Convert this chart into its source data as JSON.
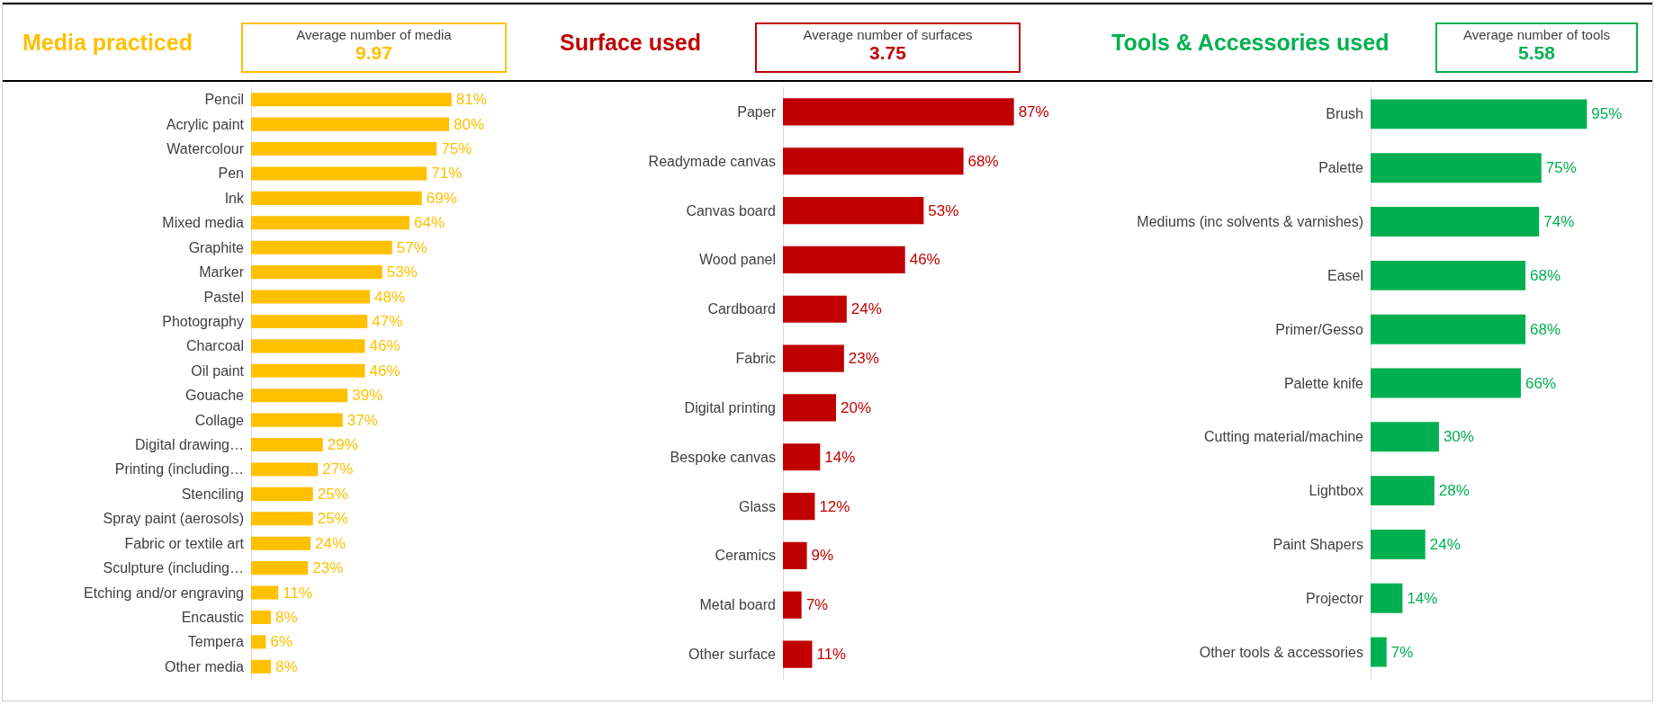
{
  "chart_data": [
    {
      "type": "bar",
      "orientation": "horizontal",
      "title": "Media practiced",
      "annotations": [
        "Average number of media",
        "9.97"
      ],
      "color": "#ffc000",
      "categories": [
        "Pencil",
        "Acrylic paint",
        "Watercolour",
        "Pen",
        "Ink",
        "Mixed media",
        "Graphite",
        "Marker",
        "Pastel",
        "Photography",
        "Charcoal",
        "Oil paint",
        "Gouache",
        "Collage",
        "Digital drawing…",
        "Printing (including…",
        "Stenciling",
        "Spray paint (aerosols)",
        "Fabric or textile art",
        "Sculpture (including…",
        "Etching and/or engraving",
        "Encaustic",
        "Tempera",
        "Other media"
      ],
      "values": [
        81,
        80,
        75,
        71,
        69,
        64,
        57,
        53,
        48,
        47,
        46,
        46,
        39,
        37,
        29,
        27,
        25,
        25,
        24,
        23,
        11,
        8,
        6,
        8
      ],
      "value_labels": [
        "81%",
        "80%",
        "75%",
        "71%",
        "69%",
        "64%",
        "57%",
        "53%",
        "48%",
        "47%",
        "46%",
        "46%",
        "39%",
        "37%",
        "29%",
        "27%",
        "25%",
        "25%",
        "24%",
        "23%",
        "11%",
        "8%",
        "6%",
        "8%"
      ]
    },
    {
      "type": "bar",
      "orientation": "horizontal",
      "title": "Surface used",
      "annotations": [
        "Average number of surfaces",
        "3.75"
      ],
      "color": "#c00000",
      "categories": [
        "Paper",
        "Readymade canvas",
        "Canvas board",
        "Wood panel",
        "Cardboard",
        "Fabric",
        "Digital printing",
        "Bespoke canvas",
        "Glass",
        "Ceramics",
        "Metal board",
        "Other surface"
      ],
      "values": [
        87,
        68,
        53,
        46,
        24,
        23,
        20,
        14,
        12,
        9,
        7,
        11
      ],
      "value_labels": [
        "87%",
        "68%",
        "53%",
        "46%",
        "24%",
        "23%",
        "20%",
        "14%",
        "12%",
        "9%",
        "7%",
        "11%"
      ]
    },
    {
      "type": "bar",
      "orientation": "horizontal",
      "title": "Tools & Accessories  used",
      "annotations": [
        "Average number of tools",
        "5.58"
      ],
      "color": "#00b050",
      "categories": [
        "Brush",
        "Palette",
        "Mediums (inc solvents & varnishes)",
        "Easel",
        "Primer/Gesso",
        "Palette knife",
        "Cutting material/machine",
        "Lightbox",
        "Paint Shapers",
        "Projector",
        "Other tools & accessories"
      ],
      "values": [
        95,
        75,
        74,
        68,
        68,
        66,
        30,
        28,
        24,
        14,
        7
      ],
      "value_labels": [
        "95%",
        "75%",
        "74%",
        "68%",
        "68%",
        "66%",
        "30%",
        "28%",
        "24%",
        "14%",
        "7%"
      ]
    }
  ]
}
